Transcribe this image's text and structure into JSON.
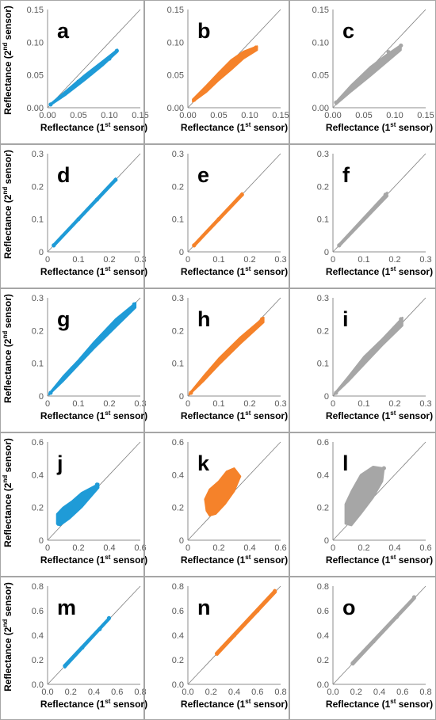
{
  "colors": {
    "blue": "#1f9bd7",
    "orange": "#f5822a",
    "gray": "#a6a6a6"
  },
  "axis_labels": {
    "x": {
      "main": "Reflectance (1",
      "sup": "st",
      "tail": " sensor)"
    },
    "y": {
      "main": "Reflectance (2",
      "sup": "nd",
      "tail": " sensor)"
    }
  },
  "chart_data": [
    {
      "type": "scatter",
      "label": "a",
      "color": "blue",
      "xlim": [
        0,
        0.15
      ],
      "ylim": [
        0,
        0.15
      ],
      "ticks": [
        "0.00",
        "0.05",
        "0.10",
        "0.15"
      ],
      "tick_values": [
        0,
        0.05,
        0.1,
        0.15
      ],
      "points": [
        [
          0.005,
          0.005
        ],
        [
          0.02,
          0.016
        ],
        [
          0.04,
          0.03
        ],
        [
          0.06,
          0.045
        ],
        [
          0.08,
          0.06
        ],
        [
          0.1,
          0.075
        ],
        [
          0.112,
          0.087
        ],
        [
          0.07,
          0.052
        ],
        [
          0.09,
          0.069
        ],
        [
          0.05,
          0.04
        ]
      ],
      "band": [
        [
          0.005,
          0.006
        ],
        [
          0.03,
          0.026
        ],
        [
          0.06,
          0.05
        ],
        [
          0.09,
          0.072
        ],
        [
          0.113,
          0.089
        ],
        [
          0.113,
          0.085
        ],
        [
          0.09,
          0.065
        ],
        [
          0.06,
          0.042
        ],
        [
          0.03,
          0.02
        ],
        [
          0.005,
          0.004
        ]
      ]
    },
    {
      "type": "scatter",
      "label": "b",
      "color": "orange",
      "xlim": [
        0,
        0.15
      ],
      "ylim": [
        0,
        0.15
      ],
      "ticks": [
        "0.00",
        "0.05",
        "0.10",
        "0.15"
      ],
      "tick_values": [
        0,
        0.05,
        0.1,
        0.15
      ],
      "points": [
        [
          0.01,
          0.012
        ],
        [
          0.03,
          0.03
        ],
        [
          0.05,
          0.048
        ],
        [
          0.07,
          0.066
        ],
        [
          0.09,
          0.08
        ],
        [
          0.11,
          0.092
        ]
      ],
      "band": [
        [
          0.008,
          0.013
        ],
        [
          0.03,
          0.034
        ],
        [
          0.05,
          0.054
        ],
        [
          0.07,
          0.073
        ],
        [
          0.09,
          0.086
        ],
        [
          0.112,
          0.094
        ],
        [
          0.112,
          0.088
        ],
        [
          0.09,
          0.075
        ],
        [
          0.07,
          0.058
        ],
        [
          0.05,
          0.042
        ],
        [
          0.03,
          0.024
        ],
        [
          0.008,
          0.009
        ]
      ]
    },
    {
      "type": "scatter",
      "label": "c",
      "color": "gray",
      "xlim": [
        0,
        0.15
      ],
      "ylim": [
        0,
        0.15
      ],
      "ticks": [
        "0.00",
        "0.05",
        "0.10",
        "0.15"
      ],
      "tick_values": [
        0,
        0.05,
        0.1,
        0.15
      ],
      "points": [
        [
          0.005,
          0.008
        ],
        [
          0.03,
          0.03
        ],
        [
          0.06,
          0.055
        ],
        [
          0.08,
          0.07
        ],
        [
          0.1,
          0.085
        ],
        [
          0.11,
          0.095
        ],
        [
          0.09,
          0.085
        ]
      ],
      "band": [
        [
          0.005,
          0.009
        ],
        [
          0.03,
          0.035
        ],
        [
          0.06,
          0.062
        ],
        [
          0.085,
          0.08
        ],
        [
          0.11,
          0.096
        ],
        [
          0.11,
          0.088
        ],
        [
          0.085,
          0.068
        ],
        [
          0.06,
          0.048
        ],
        [
          0.03,
          0.025
        ],
        [
          0.005,
          0.005
        ]
      ]
    },
    {
      "type": "scatter",
      "label": "d",
      "color": "blue",
      "xlim": [
        0,
        0.3
      ],
      "ylim": [
        0,
        0.3
      ],
      "ticks": [
        "0",
        "0.1",
        "0.2",
        "0.3"
      ],
      "tick_values": [
        0,
        0.1,
        0.2,
        0.3
      ],
      "points": [
        [
          0.02,
          0.02
        ],
        [
          0.1,
          0.1
        ],
        [
          0.16,
          0.16
        ],
        [
          0.22,
          0.22
        ]
      ],
      "band": [
        [
          0.018,
          0.022
        ],
        [
          0.22,
          0.225
        ],
        [
          0.222,
          0.218
        ],
        [
          0.02,
          0.016
        ]
      ]
    },
    {
      "type": "scatter",
      "label": "e",
      "color": "orange",
      "xlim": [
        0,
        0.3
      ],
      "ylim": [
        0,
        0.3
      ],
      "ticks": [
        "0",
        "0.1",
        "0.2",
        "0.3"
      ],
      "tick_values": [
        0,
        0.1,
        0.2,
        0.3
      ],
      "points": [
        [
          0.02,
          0.02
        ],
        [
          0.1,
          0.1
        ],
        [
          0.175,
          0.175
        ]
      ],
      "band": [
        [
          0.018,
          0.022
        ],
        [
          0.175,
          0.18
        ],
        [
          0.177,
          0.172
        ],
        [
          0.02,
          0.016
        ]
      ]
    },
    {
      "type": "scatter",
      "label": "f",
      "color": "gray",
      "xlim": [
        0,
        0.3
      ],
      "ylim": [
        0,
        0.3
      ],
      "ticks": [
        "0",
        "0.1",
        "0.2",
        "0.3"
      ],
      "tick_values": [
        0,
        0.1,
        0.2,
        0.3
      ],
      "points": [
        [
          0.02,
          0.02
        ],
        [
          0.1,
          0.1
        ],
        [
          0.17,
          0.175
        ]
      ],
      "band": [
        [
          0.018,
          0.022
        ],
        [
          0.175,
          0.182
        ],
        [
          0.177,
          0.17
        ],
        [
          0.02,
          0.016
        ]
      ]
    },
    {
      "type": "scatter",
      "label": "g",
      "color": "blue",
      "xlim": [
        0,
        0.3
      ],
      "ylim": [
        0,
        0.3
      ],
      "ticks": [
        "0",
        "0.1",
        "0.2",
        "0.3"
      ],
      "tick_values": [
        0,
        0.1,
        0.2,
        0.3
      ],
      "points": [
        [
          0.01,
          0.01
        ],
        [
          0.08,
          0.085
        ],
        [
          0.15,
          0.155
        ],
        [
          0.22,
          0.225
        ],
        [
          0.28,
          0.28
        ]
      ],
      "band": [
        [
          0.005,
          0.008
        ],
        [
          0.05,
          0.06
        ],
        [
          0.1,
          0.11
        ],
        [
          0.15,
          0.165
        ],
        [
          0.22,
          0.235
        ],
        [
          0.285,
          0.285
        ],
        [
          0.285,
          0.27
        ],
        [
          0.22,
          0.21
        ],
        [
          0.15,
          0.145
        ],
        [
          0.1,
          0.095
        ],
        [
          0.05,
          0.045
        ],
        [
          0.005,
          0.004
        ]
      ]
    },
    {
      "type": "scatter",
      "label": "h",
      "color": "orange",
      "xlim": [
        0,
        0.3
      ],
      "ylim": [
        0,
        0.3
      ],
      "ticks": [
        "0",
        "0.1",
        "0.2",
        "0.3"
      ],
      "tick_values": [
        0,
        0.1,
        0.2,
        0.3
      ],
      "points": [
        [
          0.01,
          0.01
        ],
        [
          0.08,
          0.085
        ],
        [
          0.15,
          0.15
        ],
        [
          0.24,
          0.235
        ]
      ],
      "band": [
        [
          0.005,
          0.008
        ],
        [
          0.05,
          0.06
        ],
        [
          0.1,
          0.115
        ],
        [
          0.17,
          0.18
        ],
        [
          0.245,
          0.24
        ],
        [
          0.245,
          0.225
        ],
        [
          0.17,
          0.16
        ],
        [
          0.1,
          0.095
        ],
        [
          0.05,
          0.045
        ],
        [
          0.005,
          0.004
        ]
      ]
    },
    {
      "type": "scatter",
      "label": "i",
      "color": "gray",
      "xlim": [
        0,
        0.3
      ],
      "ylim": [
        0,
        0.3
      ],
      "ticks": [
        "0",
        "0.1",
        "0.2",
        "0.3"
      ],
      "tick_values": [
        0,
        0.1,
        0.2,
        0.3
      ],
      "points": [
        [
          0.01,
          0.01
        ],
        [
          0.1,
          0.105
        ],
        [
          0.18,
          0.18
        ],
        [
          0.22,
          0.235
        ]
      ],
      "band": [
        [
          0.005,
          0.008
        ],
        [
          0.05,
          0.06
        ],
        [
          0.1,
          0.12
        ],
        [
          0.16,
          0.175
        ],
        [
          0.225,
          0.24
        ],
        [
          0.225,
          0.215
        ],
        [
          0.16,
          0.155
        ],
        [
          0.1,
          0.095
        ],
        [
          0.05,
          0.045
        ],
        [
          0.005,
          0.004
        ]
      ]
    },
    {
      "type": "scatter",
      "label": "j",
      "color": "blue",
      "xlim": [
        0,
        0.6
      ],
      "ylim": [
        0,
        0.6
      ],
      "ticks": [
        "0",
        "0.2",
        "0.4",
        "0.6"
      ],
      "tick_values": [
        0,
        0.2,
        0.4,
        0.6
      ],
      "points": [
        [
          0.07,
          0.1
        ],
        [
          0.15,
          0.2
        ],
        [
          0.25,
          0.28
        ],
        [
          0.32,
          0.34
        ]
      ],
      "band": [
        [
          0.06,
          0.1
        ],
        [
          0.06,
          0.16
        ],
        [
          0.1,
          0.2
        ],
        [
          0.16,
          0.24
        ],
        [
          0.22,
          0.29
        ],
        [
          0.33,
          0.345
        ],
        [
          0.33,
          0.32
        ],
        [
          0.22,
          0.2
        ],
        [
          0.14,
          0.13
        ],
        [
          0.08,
          0.09
        ]
      ]
    },
    {
      "type": "scatter",
      "label": "k",
      "color": "orange",
      "xlim": [
        0,
        0.6
      ],
      "ylim": [
        0,
        0.6
      ],
      "ticks": [
        "0",
        "0.2",
        "0.4",
        "0.6"
      ],
      "tick_values": [
        0,
        0.2,
        0.4,
        0.6
      ],
      "points": [
        [
          0.15,
          0.2
        ],
        [
          0.2,
          0.3
        ],
        [
          0.25,
          0.35
        ],
        [
          0.32,
          0.38
        ]
      ],
      "band": [
        [
          0.12,
          0.18
        ],
        [
          0.11,
          0.25
        ],
        [
          0.14,
          0.31
        ],
        [
          0.2,
          0.36
        ],
        [
          0.25,
          0.42
        ],
        [
          0.3,
          0.44
        ],
        [
          0.34,
          0.39
        ],
        [
          0.3,
          0.3
        ],
        [
          0.24,
          0.22
        ],
        [
          0.18,
          0.16
        ],
        [
          0.14,
          0.15
        ]
      ]
    },
    {
      "type": "scatter",
      "label": "l",
      "color": "gray",
      "xlim": [
        0,
        0.6
      ],
      "ylim": [
        0,
        0.6
      ],
      "ticks": [
        "0",
        "0.2",
        "0.4",
        "0.6"
      ],
      "tick_values": [
        0,
        0.2,
        0.4,
        0.6
      ],
      "points": [
        [
          0.1,
          0.14
        ],
        [
          0.18,
          0.25
        ],
        [
          0.25,
          0.35
        ],
        [
          0.33,
          0.44
        ]
      ],
      "band": [
        [
          0.08,
          0.1
        ],
        [
          0.08,
          0.22
        ],
        [
          0.12,
          0.3
        ],
        [
          0.18,
          0.4
        ],
        [
          0.26,
          0.45
        ],
        [
          0.33,
          0.44
        ],
        [
          0.32,
          0.36
        ],
        [
          0.26,
          0.26
        ],
        [
          0.18,
          0.16
        ],
        [
          0.12,
          0.09
        ]
      ]
    },
    {
      "type": "scatter",
      "label": "m",
      "color": "blue",
      "xlim": [
        0,
        0.8
      ],
      "ylim": [
        0,
        0.8
      ],
      "ticks": [
        "0.0",
        "0.2",
        "0.4",
        "0.6",
        "0.8"
      ],
      "tick_values": [
        0,
        0.2,
        0.4,
        0.6,
        0.8
      ],
      "points": [
        [
          0.15,
          0.15
        ],
        [
          0.3,
          0.3
        ],
        [
          0.45,
          0.45
        ],
        [
          0.53,
          0.54
        ]
      ],
      "band": [
        [
          0.14,
          0.155
        ],
        [
          0.53,
          0.545
        ],
        [
          0.535,
          0.53
        ],
        [
          0.15,
          0.135
        ]
      ]
    },
    {
      "type": "scatter",
      "label": "n",
      "color": "orange",
      "xlim": [
        0,
        0.8
      ],
      "ylim": [
        0,
        0.8
      ],
      "ticks": [
        "0.0",
        "0.2",
        "0.4",
        "0.6",
        "0.8"
      ],
      "tick_values": [
        0,
        0.2,
        0.4,
        0.6,
        0.8
      ],
      "points": [
        [
          0.25,
          0.25
        ],
        [
          0.4,
          0.4
        ],
        [
          0.6,
          0.6
        ],
        [
          0.75,
          0.76
        ]
      ],
      "band": [
        [
          0.245,
          0.26
        ],
        [
          0.75,
          0.77
        ],
        [
          0.76,
          0.75
        ],
        [
          0.255,
          0.24
        ]
      ]
    },
    {
      "type": "scatter",
      "label": "o",
      "color": "gray",
      "xlim": [
        0,
        0.8
      ],
      "ylim": [
        0,
        0.8
      ],
      "ticks": [
        "0.0",
        "0.2",
        "0.4",
        "0.6",
        "0.8"
      ],
      "tick_values": [
        0,
        0.2,
        0.4,
        0.6,
        0.8
      ],
      "points": [
        [
          0.17,
          0.17
        ],
        [
          0.35,
          0.35
        ],
        [
          0.55,
          0.55
        ],
        [
          0.7,
          0.71
        ]
      ],
      "band": [
        [
          0.165,
          0.18
        ],
        [
          0.7,
          0.715
        ],
        [
          0.71,
          0.7
        ],
        [
          0.175,
          0.16
        ]
      ]
    }
  ]
}
